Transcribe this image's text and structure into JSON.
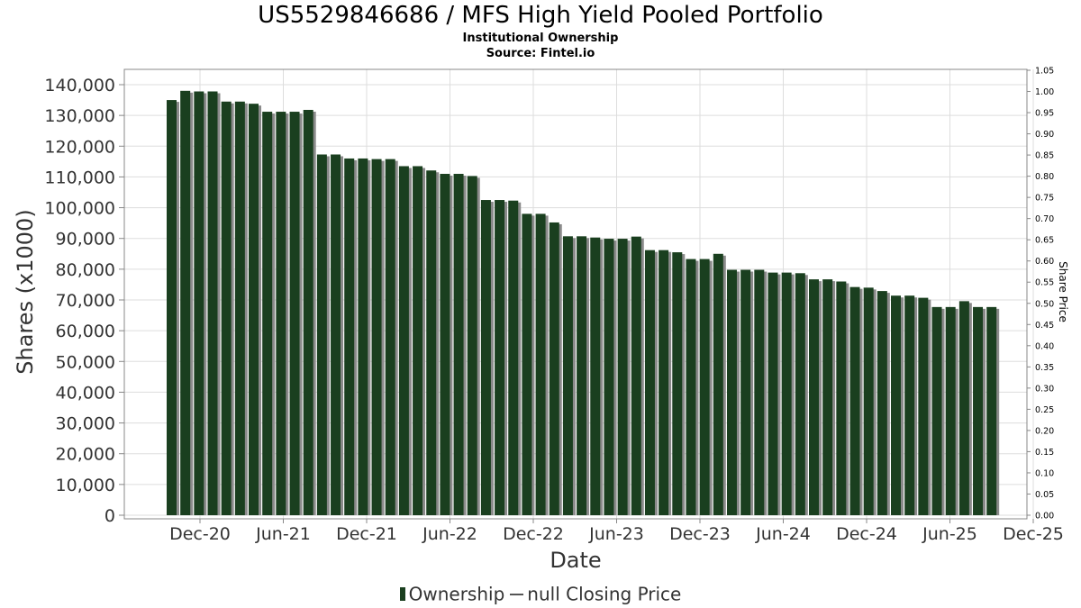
{
  "header": {
    "title": "US5529846686 / MFS High Yield Pooled Portfolio",
    "subtitle1": "Institutional Ownership",
    "subtitle2": "Source: Fintel.io"
  },
  "legend": {
    "ownership_label": "Ownership",
    "price_label": "null Closing Price"
  },
  "chart_data": {
    "type": "bar",
    "title": "US5529846686 / MFS High Yield Pooled Portfolio",
    "xlabel": "Date",
    "ylabel": "Shares (x1000)",
    "y2label": "Share Price",
    "ylim": [
      0,
      145000
    ],
    "y2lim": [
      0,
      1.05
    ],
    "y_ticks": [
      "0",
      "10,000",
      "20,000",
      "30,000",
      "40,000",
      "50,000",
      "60,000",
      "70,000",
      "80,000",
      "90,000",
      "100,000",
      "110,000",
      "120,000",
      "130,000",
      "140,000"
    ],
    "y2_ticks": [
      "0.00",
      "0.05",
      "0.10",
      "0.15",
      "0.20",
      "0.25",
      "0.30",
      "0.35",
      "0.40",
      "0.45",
      "0.50",
      "0.55",
      "0.60",
      "0.65",
      "0.70",
      "0.75",
      "0.80",
      "0.85",
      "0.90",
      "0.95",
      "1.00",
      "1.05"
    ],
    "x_ticks": [
      "Dec-20",
      "Jun-21",
      "Dec-21",
      "Jun-22",
      "Dec-22",
      "Jun-23",
      "Dec-23",
      "Jun-24",
      "Dec-24",
      "Jun-25",
      "Dec-25"
    ],
    "grid": true,
    "legend_position": "bottom",
    "colors": {
      "bar": "#1a3f1f",
      "bar_shadow": "#8a8a8a",
      "grid": "#dddddd"
    },
    "series": [
      {
        "name": "Ownership",
        "values": [
          135000,
          138000,
          137800,
          137800,
          134500,
          134500,
          133800,
          131200,
          131200,
          131200,
          131800,
          117300,
          117300,
          116000,
          116000,
          115800,
          115800,
          113500,
          113500,
          112100,
          111000,
          111000,
          110300,
          102500,
          102500,
          102300,
          98000,
          98000,
          95200,
          90700,
          90700,
          90300,
          89900,
          89900,
          90600,
          86200,
          86200,
          85500,
          83300,
          83300,
          85000,
          79800,
          79800,
          79800,
          78900,
          78900,
          78700,
          76700,
          76700,
          76000,
          74200,
          74000,
          72900,
          71400,
          71400,
          70700,
          67700,
          67700,
          69600,
          67700,
          67700
        ]
      }
    ]
  }
}
